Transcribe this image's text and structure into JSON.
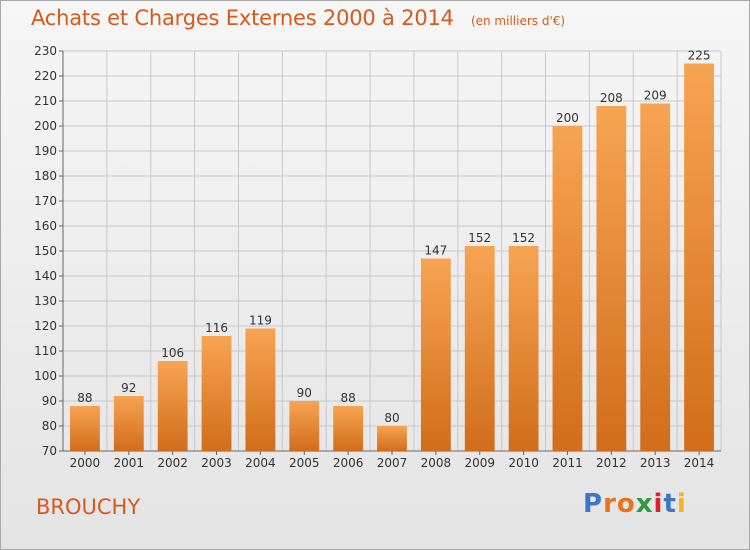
{
  "header": {
    "title": "Achats et Charges Externes 2000 à 2014",
    "subtitle": "(en milliers d'€)"
  },
  "footer": {
    "place": "BROUCHY",
    "logo_text": "Proxiti",
    "logo_colors": [
      "#3a77c7",
      "#e8731c",
      "#e8731c",
      "#2f9a3c",
      "#d9232e",
      "#3a77c7",
      "#f2b41b"
    ]
  },
  "colors": {
    "title": "#d65a1d",
    "bar_light": "#f7a452",
    "bar_dark": "#d16d1c",
    "grid": "#c8c8c8"
  },
  "chart_data": {
    "type": "bar",
    "categories": [
      "2000",
      "2001",
      "2002",
      "2003",
      "2004",
      "2005",
      "2006",
      "2007",
      "2008",
      "2009",
      "2010",
      "2011",
      "2012",
      "2013",
      "2014"
    ],
    "values": [
      88,
      92,
      106,
      116,
      119,
      90,
      88,
      80,
      147,
      152,
      152,
      200,
      208,
      209,
      225
    ],
    "ylim": [
      70,
      230
    ],
    "ytick_step": 10,
    "grid": true
  }
}
